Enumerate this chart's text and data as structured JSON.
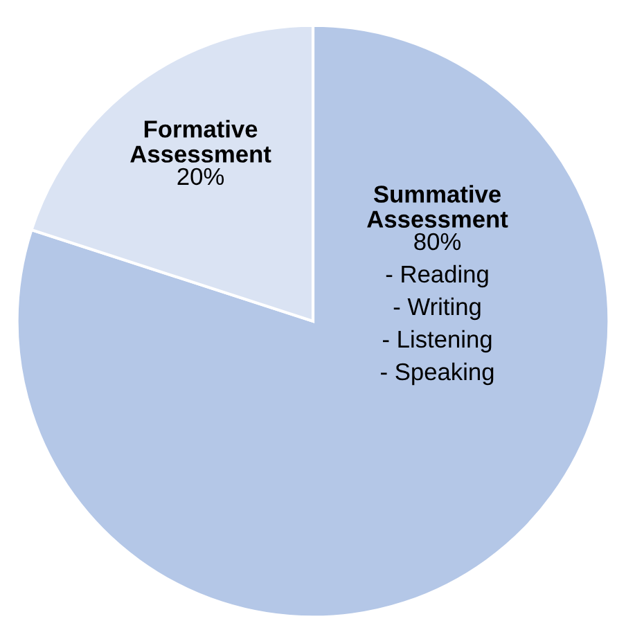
{
  "chart_data": {
    "type": "pie",
    "categories": [
      "Summative Assessment",
      "Formative Assessment"
    ],
    "values": [
      80,
      20
    ],
    "colors": [
      "#b4c7e7",
      "#dae3f3"
    ],
    "value_labels": [
      "80%",
      "20%"
    ],
    "annotations": [
      "- Reading",
      "- Writing",
      "- Listening",
      "- Speaking"
    ],
    "legend": false
  }
}
